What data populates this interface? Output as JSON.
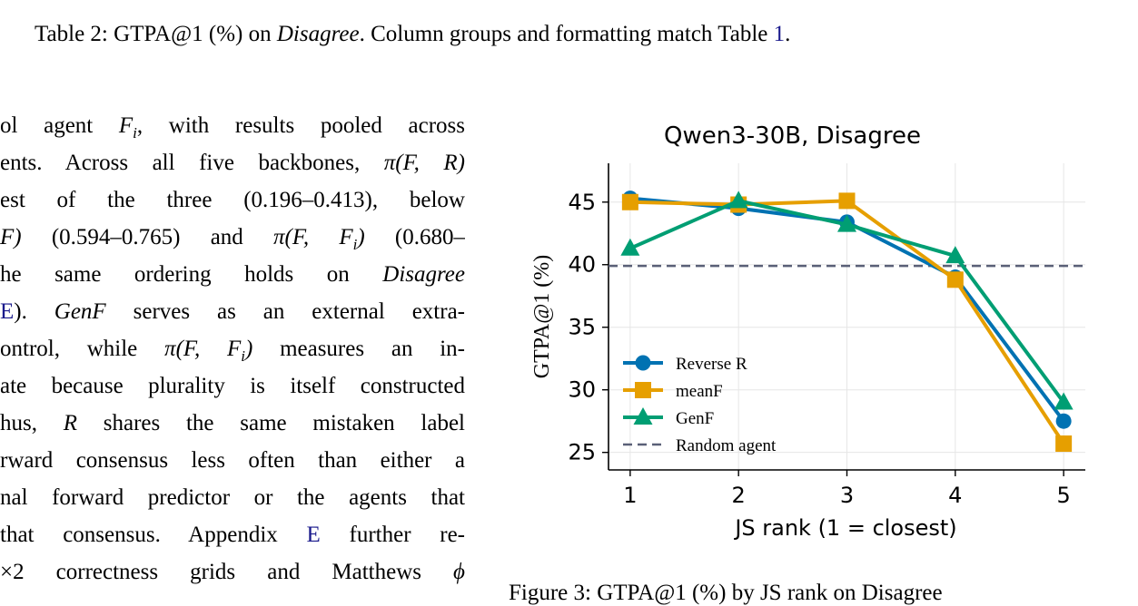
{
  "table_caption": {
    "prefix": "Table 2: GTPA@1 (%) on ",
    "emph": "Disagree",
    "suffix": ". Column groups and formatting match Table ",
    "ref": "1",
    "end": "."
  },
  "body_lines": [
    {
      "segs": [
        {
          "t": "ol agent "
        },
        {
          "t": "F",
          "m": true
        },
        {
          "t": "i",
          "m": true,
          "sub": true
        },
        {
          "t": ", with results pooled across"
        }
      ]
    },
    {
      "segs": [
        {
          "t": "ents. Across all five backbones, "
        },
        {
          "t": "π(F, R)",
          "m": true
        }
      ]
    },
    {
      "segs": [
        {
          "t": "est of the three (0.196–0.413), below"
        }
      ]
    },
    {
      "segs": [
        {
          "t": "F)",
          "m": true
        },
        {
          "t": " (0.594–0.765) and "
        },
        {
          "t": "π(F, F",
          "m": true
        },
        {
          "t": "i",
          "m": true,
          "sub": true
        },
        {
          "t": ")",
          "m": true
        },
        {
          "t": " (0.680–"
        }
      ]
    },
    {
      "segs": [
        {
          "t": "he same ordering holds on "
        },
        {
          "t": "Disagree",
          "m": true
        }
      ]
    },
    {
      "segs": [
        {
          "t": "E",
          "ref": true
        },
        {
          "t": "). "
        },
        {
          "t": "GenF",
          "m": true
        },
        {
          "t": " serves as an external extra-"
        }
      ]
    },
    {
      "segs": [
        {
          "t": "ontrol, while "
        },
        {
          "t": "π(F, F",
          "m": true
        },
        {
          "t": "i",
          "m": true,
          "sub": true
        },
        {
          "t": ")",
          "m": true
        },
        {
          "t": " measures an in-"
        }
      ]
    },
    {
      "segs": [
        {
          "t": "ate because plurality is itself constructed"
        }
      ]
    },
    {
      "segs": [
        {
          "t": "hus, "
        },
        {
          "t": "R",
          "m": true
        },
        {
          "t": " shares the same mistaken label"
        }
      ]
    },
    {
      "segs": [
        {
          "t": "rward consensus less often than either a"
        }
      ]
    },
    {
      "segs": [
        {
          "t": "nal forward predictor or the agents that"
        }
      ]
    },
    {
      "segs": [
        {
          "t": "that consensus. Appendix "
        },
        {
          "t": "E",
          "ref": true
        },
        {
          "t": " further re-"
        }
      ]
    },
    {
      "segs": [
        {
          "t": "×2 correctness grids and Matthews "
        },
        {
          "t": "ϕ",
          "m": true
        }
      ]
    }
  ],
  "figure_caption": "Figure 3: GTPA@1 (%) by JS rank on Disagree",
  "chart_data": {
    "type": "line",
    "title": "Qwen3-30B, Disagree",
    "xlabel": "JS rank (1 = closest)",
    "ylabel": "GTPA@1 (%)",
    "x": [
      1,
      2,
      3,
      4,
      5
    ],
    "xlim": [
      0.8,
      5.2
    ],
    "ylim": [
      23.6,
      48.1
    ],
    "yticks": [
      25,
      30,
      35,
      40,
      45
    ],
    "grid": true,
    "legend_position": "lower-left",
    "series": [
      {
        "name": "Reverse R",
        "values": [
          45.3,
          44.5,
          43.4,
          39.0,
          27.5
        ],
        "color": "#0072B2",
        "marker": "circle"
      },
      {
        "name": "meanF",
        "values": [
          45.0,
          44.8,
          45.1,
          38.8,
          25.7
        ],
        "color": "#E69F00",
        "marker": "square"
      },
      {
        "name": "GenF",
        "values": [
          41.3,
          45.1,
          43.2,
          40.7,
          29.0
        ],
        "color": "#009E73",
        "marker": "triangle"
      }
    ],
    "reference_line": {
      "name": "Random agent",
      "value": 39.9,
      "color": "#5a6077",
      "style": "dashed"
    }
  }
}
